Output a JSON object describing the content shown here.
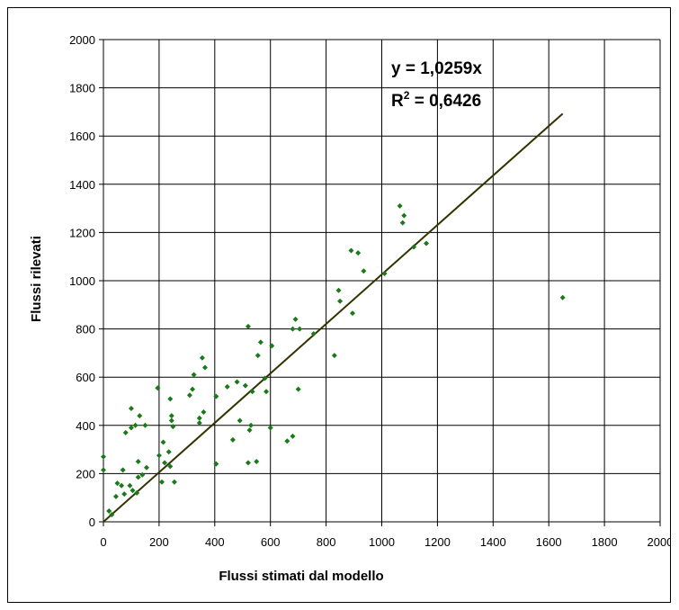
{
  "chart_data": {
    "type": "scatter",
    "title": "",
    "xlabel": "Flussi stimati dal modello",
    "ylabel": "Flussi rilevati",
    "xlim": [
      0,
      2000
    ],
    "ylim": [
      0,
      2000
    ],
    "x_ticks": [
      "0",
      "200",
      "400",
      "600",
      "800",
      "1000",
      "1200",
      "1400",
      "1600",
      "1800",
      "2000"
    ],
    "y_ticks": [
      "0",
      "200",
      "400",
      "600",
      "800",
      "1000",
      "1200",
      "1400",
      "1600",
      "1800",
      "2000"
    ],
    "grid": true,
    "legend": "none",
    "marker_color": "#1a7a1a",
    "trendline_color": "#333300",
    "trendline": {
      "slope": 1.0259,
      "intercept": 0,
      "x_range": [
        0,
        1650
      ]
    },
    "annotation": {
      "equation": "y = 1,0259x",
      "r2_prefix": "R",
      "r2_sup": "2",
      "r2_value": " = 0,6426"
    },
    "points": [
      [
        0,
        270
      ],
      [
        0,
        215
      ],
      [
        20,
        45
      ],
      [
        30,
        30
      ],
      [
        45,
        105
      ],
      [
        50,
        160
      ],
      [
        65,
        150
      ],
      [
        70,
        215
      ],
      [
        75,
        115
      ],
      [
        80,
        370
      ],
      [
        95,
        150
      ],
      [
        100,
        470
      ],
      [
        100,
        390
      ],
      [
        105,
        130
      ],
      [
        115,
        400
      ],
      [
        120,
        120
      ],
      [
        125,
        185
      ],
      [
        125,
        250
      ],
      [
        130,
        440
      ],
      [
        140,
        195
      ],
      [
        150,
        400
      ],
      [
        155,
        225
      ],
      [
        195,
        555
      ],
      [
        200,
        275
      ],
      [
        210,
        165
      ],
      [
        215,
        330
      ],
      [
        220,
        245
      ],
      [
        235,
        290
      ],
      [
        240,
        510
      ],
      [
        240,
        230
      ],
      [
        245,
        440
      ],
      [
        245,
        420
      ],
      [
        250,
        395
      ],
      [
        255,
        165
      ],
      [
        310,
        525
      ],
      [
        320,
        550
      ],
      [
        325,
        610
      ],
      [
        345,
        410
      ],
      [
        345,
        430
      ],
      [
        355,
        680
      ],
      [
        360,
        455
      ],
      [
        365,
        640
      ],
      [
        405,
        240
      ],
      [
        405,
        520
      ],
      [
        445,
        560
      ],
      [
        465,
        340
      ],
      [
        480,
        580
      ],
      [
        490,
        420
      ],
      [
        510,
        565
      ],
      [
        520,
        810
      ],
      [
        520,
        245
      ],
      [
        525,
        380
      ],
      [
        530,
        400
      ],
      [
        535,
        540
      ],
      [
        550,
        250
      ],
      [
        555,
        690
      ],
      [
        565,
        745
      ],
      [
        580,
        595
      ],
      [
        585,
        540
      ],
      [
        600,
        390
      ],
      [
        605,
        730
      ],
      [
        660,
        335
      ],
      [
        680,
        800
      ],
      [
        680,
        355
      ],
      [
        690,
        840
      ],
      [
        700,
        550
      ],
      [
        705,
        800
      ],
      [
        755,
        780
      ],
      [
        830,
        690
      ],
      [
        845,
        960
      ],
      [
        850,
        915
      ],
      [
        890,
        1125
      ],
      [
        895,
        865
      ],
      [
        915,
        1115
      ],
      [
        935,
        1040
      ],
      [
        1010,
        1030
      ],
      [
        1065,
        1310
      ],
      [
        1075,
        1240
      ],
      [
        1080,
        1270
      ],
      [
        1115,
        1140
      ],
      [
        1160,
        1155
      ],
      [
        1650,
        930
      ]
    ]
  }
}
